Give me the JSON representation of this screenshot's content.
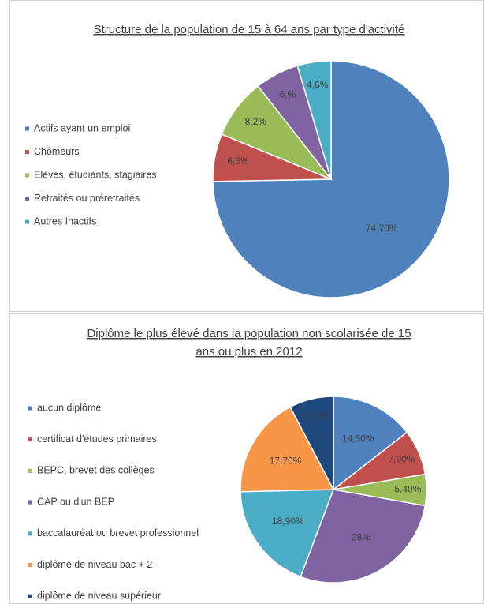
{
  "chart_data": [
    {
      "type": "pie",
      "title": "Structure de la population de 15 à 64 ans par type d'activité",
      "categories": [
        "Actifs ayant un emploi",
        "Chômeurs",
        "Elèves, étudiants, stagiaires",
        "Retraités ou préretraités",
        "Autres Inactifs"
      ],
      "values": [
        74.7,
        6.5,
        8.2,
        6,
        4.6
      ],
      "value_labels": [
        "74,70%",
        "6,5%",
        "8,2%",
        "6,%",
        "4,6%"
      ],
      "colors": [
        "#4f81bd",
        "#c0504d",
        "#9bbb59",
        "#8064a2",
        "#4bacc6"
      ],
      "legend": "left"
    },
    {
      "type": "pie",
      "title": [
        "Diplôme le plus élevé dans la population non scolarisée de 15",
        "ans ou plus en 2012"
      ],
      "categories": [
        "aucun diplôme",
        "certificat d'études primaires",
        "BEPC, brevet des collèges",
        "CAP ou d'un BEP",
        "baccalauréat ou brevet professionnel",
        "diplôme de niveau bac + 2",
        "diplôme de niveau supérieur"
      ],
      "values": [
        14.5,
        7.9,
        5.4,
        28,
        18.9,
        17.7,
        7.7
      ],
      "value_labels": [
        "14,50%",
        "7,90%",
        "5,40%",
        "28%",
        "18,90%",
        "17,70%",
        "7,70%"
      ],
      "colors": [
        "#4f81bd",
        "#c0504d",
        "#9bbb59",
        "#8064a2",
        "#4bacc6",
        "#f79646",
        "#1f497d"
      ],
      "legend": "left"
    }
  ]
}
